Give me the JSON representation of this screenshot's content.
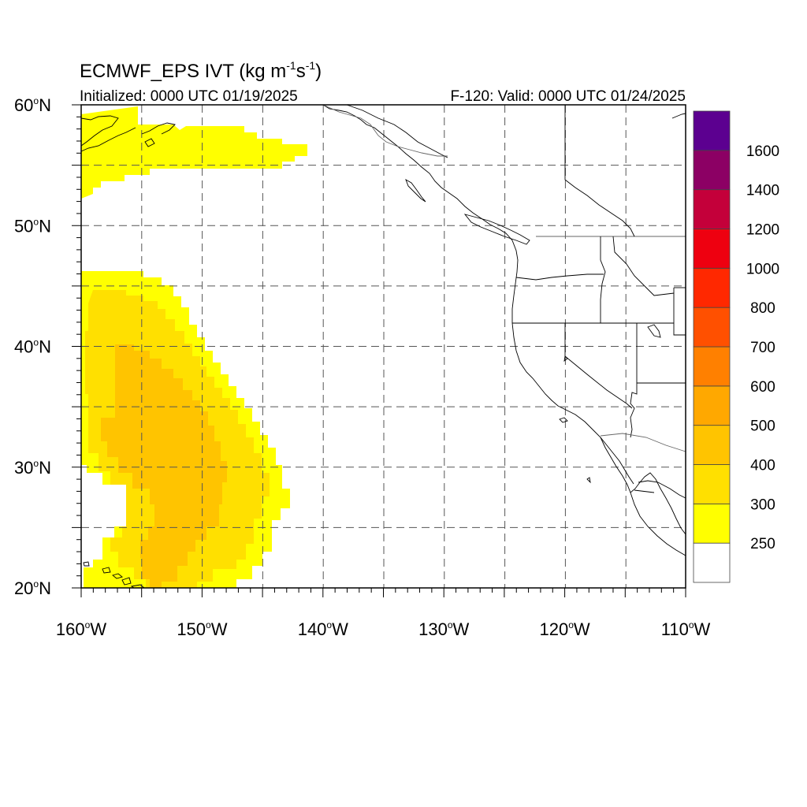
{
  "title": {
    "main": "ECMWF_EPS IVT (kg m",
    "sup1": "-1",
    "mid": "s",
    "sup2": "-1",
    "close": ")",
    "initialized": "Initialized: 0000 UTC 01/19/2025",
    "valid": "F-120: Valid: 0000 UTC 01/24/2025"
  },
  "axes": {
    "lat_labels": [
      {
        "lat": 60,
        "text": "60",
        "suffix": "N"
      },
      {
        "lat": 50,
        "text": "50",
        "suffix": "N"
      },
      {
        "lat": 40,
        "text": "40",
        "suffix": "N"
      },
      {
        "lat": 30,
        "text": "30",
        "suffix": "N"
      },
      {
        "lat": 20,
        "text": "20",
        "suffix": "N"
      }
    ],
    "lon_labels": [
      {
        "lon": -160,
        "text": "160",
        "suffix": "W"
      },
      {
        "lon": -150,
        "text": "150",
        "suffix": "W"
      },
      {
        "lon": -140,
        "text": "140",
        "suffix": "W"
      },
      {
        "lon": -130,
        "text": "130",
        "suffix": "W"
      },
      {
        "lon": -120,
        "text": "120",
        "suffix": "W"
      },
      {
        "lon": -110,
        "text": "110",
        "suffix": "W"
      }
    ],
    "lon_range": [
      -160,
      -110
    ],
    "lat_range": [
      20,
      60
    ],
    "grid": true
  },
  "colorbar": {
    "labels": [
      "250",
      "300",
      "400",
      "500",
      "600",
      "700",
      "800",
      "1000",
      "1200",
      "1400",
      "1600"
    ],
    "colors": [
      "#ffffff",
      "#ffff00",
      "#ffe000",
      "#ffc400",
      "#ffa800",
      "#ff8000",
      "#ff5000",
      "#ff2800",
      "#ee0010",
      "#c4003a",
      "#8c0064",
      "#5c0090"
    ]
  },
  "colors": {
    "ivt_250_300": "#ffff00",
    "ivt_300_400": "#ffe000",
    "ivt_400_500": "#ffc400"
  }
}
